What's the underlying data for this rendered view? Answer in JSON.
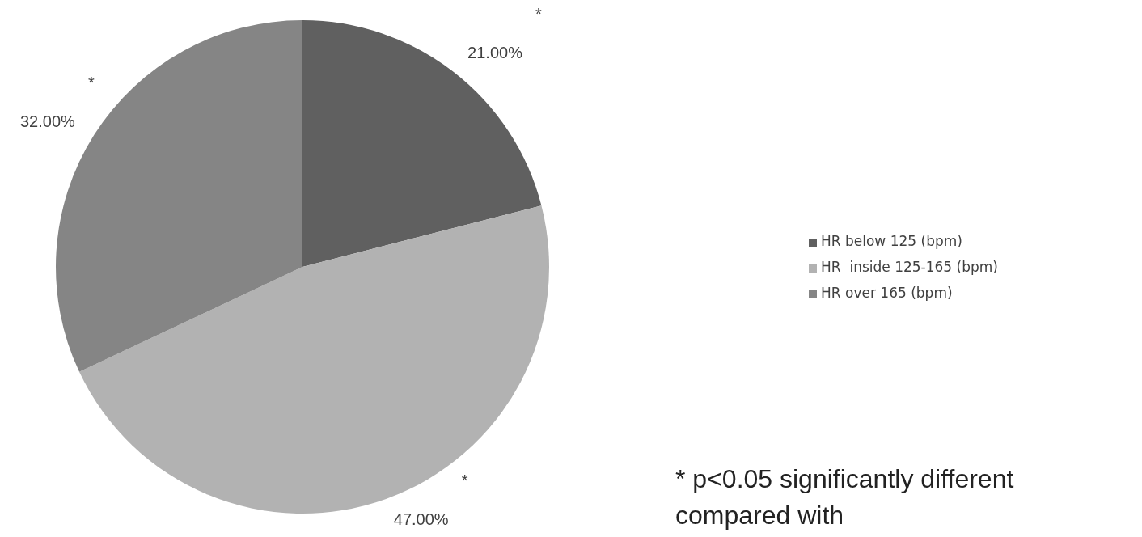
{
  "chart_data": {
    "type": "pie",
    "categories": [
      "HR below 125 (bpm)",
      "HR  inside 125-165 (bpm)",
      "HR over 165 (bpm)"
    ],
    "values": [
      21,
      47,
      32
    ],
    "value_labels": [
      "21.00%",
      "47.00%",
      "32.00%"
    ],
    "colors": [
      "#606060",
      "#b2b2b2",
      "#858585"
    ],
    "legend": "right",
    "annotations": [
      {
        "text": "*",
        "x": "HR below 125 (bpm)"
      },
      {
        "text": "*",
        "x": "HR  inside 125-165 (bpm)"
      },
      {
        "text": "*",
        "x": "HR over 165 (bpm)"
      },
      "* p<0.05 significantly different compared with"
    ]
  }
}
